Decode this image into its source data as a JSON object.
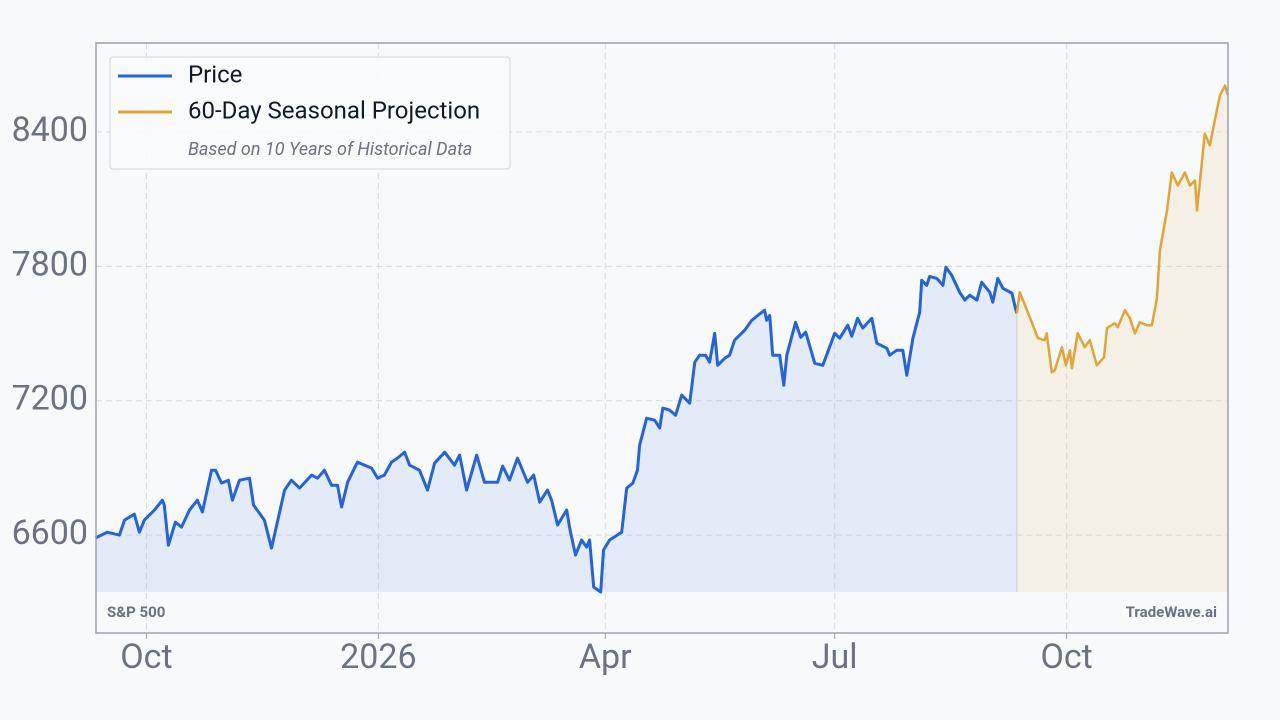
{
  "chart_data": {
    "type": "line",
    "series": [
      {
        "name": "Price",
        "color": "#2563d9",
        "fill": "rgba(37,99,235,0.09)",
        "x": [
          -20.2,
          -15.5,
          -10.7,
          -8.7,
          -4.8,
          -2.8,
          -0.8,
          3.2,
          6.3,
          7.1,
          8.7,
          11.5,
          13.9,
          17.1,
          20.2,
          22.2,
          25.8,
          27.4,
          29.8,
          32.5,
          34.1,
          36.9,
          40.9,
          42.5,
          46.8,
          49.6,
          54.8,
          57.5,
          60.7,
          65.5,
          67.9,
          70.6,
          73.4,
          75.8,
          77.4,
          79.8,
          83.7,
          89.3,
          91.7,
          94.4,
          97.2,
          99.6,
          102.4,
          104.4,
          108.3,
          111.5,
          114.3,
          118.3,
          122.2,
          124.2,
          127.0,
          131.0,
          134.1,
          139.3,
          141.3,
          144.0,
          147.2,
          151.2,
          153.6,
          156.0,
          159.1,
          160.7,
          163.1,
          166.7,
          167.9,
          170.2,
          172.6,
          174.6,
          175.8,
          177.4,
          180.2,
          181.3,
          183.7,
          188.5,
          190.5,
          192.9,
          194.8,
          195.6,
          198.4,
          201.6,
          203.6,
          204.8,
          207.5,
          209.9,
          212.3,
          215.5,
          217.5,
          219.4,
          221.8,
          223.4,
          225.4,
          226.6,
          229.4,
          231.3,
          233.3,
          237.3,
          240.1,
          242.5,
          245.2,
          246.0,
          247.2,
          248.4,
          251.2,
          252.8,
          254.0,
          257.5,
          259.5,
          261.5,
          265.1,
          268.3,
          273.0,
          275.0,
          278.2,
          279.8,
          282.1,
          284.1,
          287.7,
          289.7,
          293.7,
          294.8,
          297.6,
          300.0,
          301.6,
          304.0,
          306.7,
          307.5,
          309.5,
          310.7,
          313.5,
          315.9,
          317.1,
          319.4,
          322.6,
          324.6,
          326.6,
          329.4,
          331.3,
          334.5,
          335.7,
          337.7,
          339.7,
          343.3,
          345.2
        ],
        "values": [
          6587,
          6613,
          6600,
          6667,
          6694,
          6613,
          6667,
          6712,
          6756,
          6734,
          6555,
          6658,
          6636,
          6712,
          6756,
          6703,
          6890,
          6890,
          6832,
          6845,
          6756,
          6845,
          6854,
          6734,
          6667,
          6542,
          6801,
          6845,
          6810,
          6868,
          6854,
          6890,
          6823,
          6823,
          6725,
          6836,
          6926,
          6899,
          6854,
          6868,
          6926,
          6944,
          6970,
          6912,
          6890,
          6801,
          6921,
          6970,
          6912,
          6957,
          6801,
          6957,
          6836,
          6836,
          6908,
          6845,
          6944,
          6836,
          6868,
          6747,
          6801,
          6756,
          6645,
          6712,
          6631,
          6511,
          6578,
          6546,
          6578,
          6368,
          6346,
          6533,
          6578,
          6613,
          6810,
          6832,
          6890,
          7001,
          7122,
          7113,
          7078,
          7167,
          7158,
          7135,
          7225,
          7189,
          7372,
          7403,
          7403,
          7372,
          7501,
          7358,
          7390,
          7403,
          7470,
          7515,
          7559,
          7581,
          7604,
          7559,
          7581,
          7403,
          7403,
          7269,
          7403,
          7550,
          7483,
          7506,
          7367,
          7358,
          7501,
          7479,
          7537,
          7488,
          7568,
          7524,
          7568,
          7457,
          7434,
          7403,
          7425,
          7425,
          7314,
          7479,
          7595,
          7738,
          7715,
          7755,
          7746,
          7715,
          7796,
          7760,
          7684,
          7649,
          7671,
          7649,
          7729,
          7684,
          7640,
          7746,
          7702,
          7680,
          7590
        ]
      },
      {
        "name": "60-Day Seasonal Projection",
        "color": "#e0a535",
        "fill": "rgba(224,165,53,0.1)",
        "x": [
          345.2,
          346.4,
          349.6,
          351.6,
          353.6,
          356.3,
          357.1,
          359.1,
          360.3,
          363.1,
          364.7,
          366.3,
          367.1,
          369.4,
          372.2,
          374.2,
          377.0,
          379.8,
          381.0,
          384.1,
          385.3,
          388.1,
          390.1,
          392.1,
          394.0,
          396.8,
          398.8,
          400.8,
          402.0,
          404.8,
          406.7,
          409.1,
          411.9,
          413.9,
          415.9,
          416.7,
          419.8,
          421.8,
          425.8,
          427.8,
          429
        ],
        "values": [
          7590,
          7684,
          7595,
          7537,
          7479,
          7470,
          7501,
          7327,
          7336,
          7439,
          7358,
          7425,
          7345,
          7501,
          7439,
          7470,
          7358,
          7394,
          7524,
          7546,
          7528,
          7604,
          7568,
          7501,
          7550,
          7537,
          7537,
          7657,
          7871,
          8049,
          8219,
          8161,
          8219,
          8161,
          8183,
          8049,
          8393,
          8340,
          8563,
          8607,
          8563
        ]
      }
    ],
    "annotation": "Based on 10 Years of Historical Data",
    "source_label": "S&P 500",
    "watermark": "TradeWave.ai",
    "legend": "upper left",
    "grid": true,
    "xlim": [
      -20,
      429
    ],
    "xticks": [
      {
        "value": 0,
        "label": "Oct"
      },
      {
        "value": 92,
        "label": "2026"
      },
      {
        "value": 182,
        "label": "Apr"
      },
      {
        "value": 273,
        "label": "Jul"
      },
      {
        "value": 365,
        "label": "Oct"
      }
    ],
    "ylim": [
      6163,
      8797
    ],
    "yticks": [
      6600,
      7200,
      7800,
      8400
    ]
  }
}
